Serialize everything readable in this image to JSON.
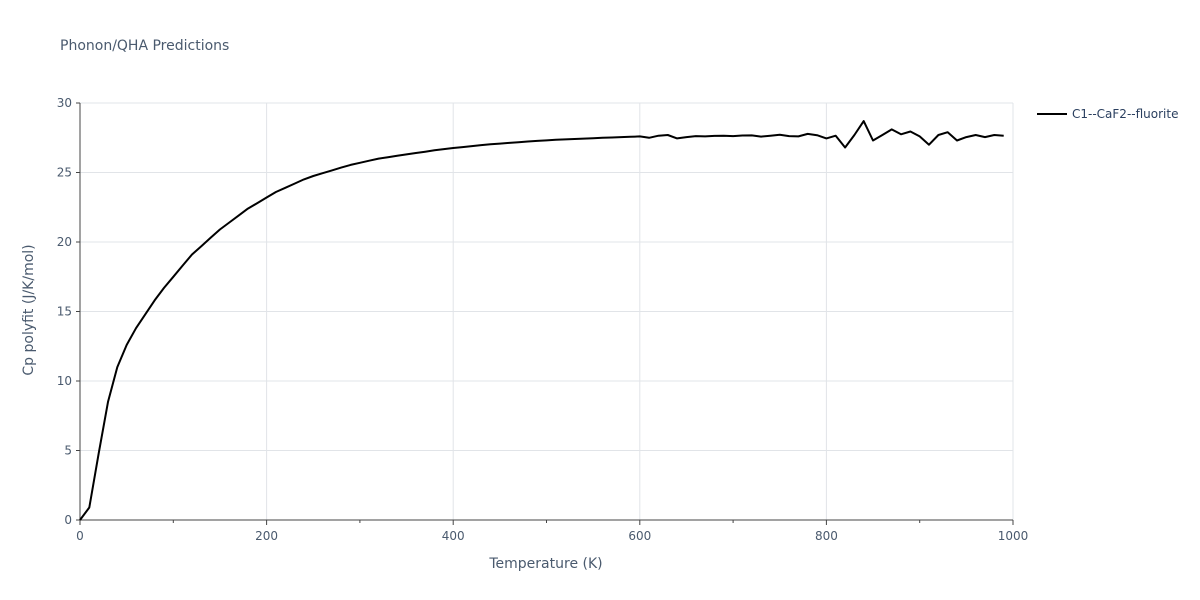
{
  "chart_data": {
    "type": "line",
    "title": "Phonon/QHA Predictions",
    "xlabel": "Temperature (K)",
    "ylabel": "Cp polyfit (J/K/mol)",
    "xlim": [
      0,
      1000
    ],
    "ylim": [
      0,
      30
    ],
    "xticks": [
      0,
      200,
      400,
      600,
      800,
      1000
    ],
    "yticks": [
      0,
      5,
      10,
      15,
      20,
      25,
      30
    ],
    "grid": true,
    "legend_position": "top-right",
    "series": [
      {
        "name": "C1--CaF2--fluorite",
        "color": "#000000",
        "x": [
          0,
          10,
          20,
          30,
          40,
          50,
          60,
          70,
          80,
          90,
          100,
          110,
          120,
          130,
          140,
          150,
          160,
          170,
          180,
          190,
          200,
          210,
          220,
          230,
          240,
          250,
          260,
          270,
          280,
          290,
          300,
          310,
          320,
          330,
          340,
          350,
          360,
          370,
          380,
          390,
          400,
          410,
          420,
          430,
          440,
          450,
          460,
          470,
          480,
          490,
          500,
          510,
          520,
          530,
          540,
          550,
          560,
          570,
          580,
          590,
          600,
          610,
          620,
          630,
          640,
          650,
          660,
          670,
          680,
          690,
          700,
          710,
          720,
          730,
          740,
          750,
          760,
          770,
          780,
          790,
          800,
          810,
          820,
          830,
          840,
          850,
          860,
          870,
          880,
          890,
          900,
          910,
          920,
          930,
          940,
          950,
          960,
          970,
          980,
          990
        ],
        "y": [
          0,
          0.9,
          4.8,
          8.5,
          11.0,
          12.6,
          13.8,
          14.8,
          15.8,
          16.7,
          17.5,
          18.3,
          19.1,
          19.7,
          20.3,
          20.9,
          21.4,
          21.9,
          22.4,
          22.8,
          23.2,
          23.6,
          23.9,
          24.2,
          24.5,
          24.75,
          24.95,
          25.15,
          25.35,
          25.55,
          25.7,
          25.85,
          26.0,
          26.1,
          26.2,
          26.3,
          26.4,
          26.5,
          26.6,
          26.68,
          26.76,
          26.83,
          26.9,
          26.97,
          27.03,
          27.08,
          27.13,
          27.18,
          27.23,
          27.27,
          27.31,
          27.35,
          27.38,
          27.41,
          27.44,
          27.47,
          27.5,
          27.52,
          27.55,
          27.57,
          27.6,
          27.5,
          27.65,
          27.7,
          27.45,
          27.55,
          27.62,
          27.6,
          27.63,
          27.65,
          27.62,
          27.66,
          27.67,
          27.58,
          27.65,
          27.72,
          27.62,
          27.6,
          27.78,
          27.68,
          27.45,
          27.65,
          26.8,
          27.7,
          28.7,
          27.3,
          27.7,
          28.1,
          27.75,
          27.95,
          27.6,
          27.0,
          27.7,
          27.9,
          27.3,
          27.55,
          27.7,
          27.55,
          27.7,
          27.65
        ]
      }
    ]
  }
}
